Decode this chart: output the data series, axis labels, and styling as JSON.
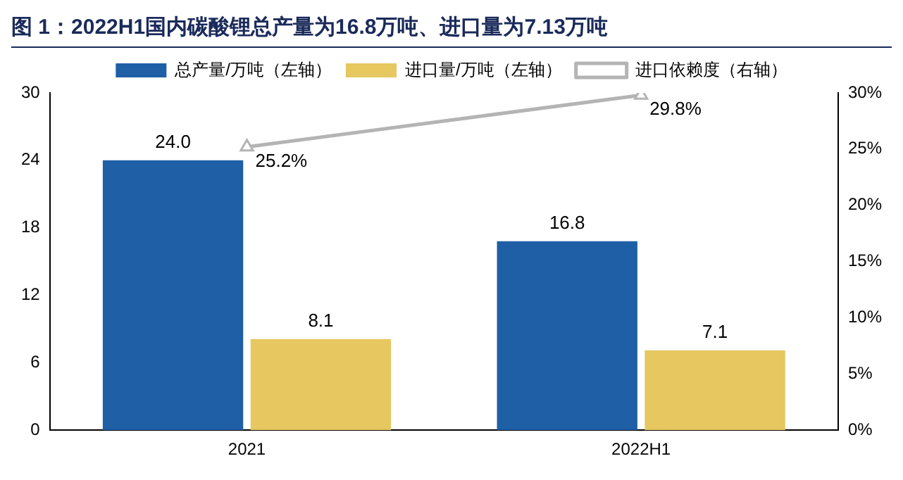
{
  "chart_data": {
    "type": "bar",
    "title": "图 1：2022H1国内碳酸锂总产量为16.8万吨、进口量为7.13万吨",
    "categories": [
      "2021",
      "2022H1"
    ],
    "series": [
      {
        "name": "总产量/万吨（左轴）",
        "color": "#1f5fa6",
        "values": [
          24.0,
          16.8
        ],
        "value_labels": [
          "24.0",
          "16.8"
        ]
      },
      {
        "name": "进口量/万吨（左轴）",
        "color": "#e6c760",
        "values": [
          8.1,
          7.1
        ],
        "value_labels": [
          "8.1",
          "7.1"
        ]
      },
      {
        "name": "进口依赖度（右轴）",
        "type": "line",
        "axis": "y2",
        "color": "#b4b4b4",
        "marker": "triangle",
        "values": [
          25.2,
          29.8
        ],
        "value_labels": [
          "25.2%",
          "29.8%"
        ]
      }
    ],
    "ylim": [
      0,
      30
    ],
    "yticks": [
      0,
      6,
      12,
      18,
      24,
      30
    ],
    "y2lim": [
      0,
      30
    ],
    "y2ticks": [
      {
        "value": 0,
        "label": "0%"
      },
      {
        "value": 5,
        "label": "5%"
      },
      {
        "value": 10,
        "label": "10%"
      },
      {
        "value": 15,
        "label": "15%"
      },
      {
        "value": 20,
        "label": "20%"
      },
      {
        "value": 25,
        "label": "25%"
      },
      {
        "value": 30,
        "label": "30%"
      }
    ],
    "grid": false,
    "legend": "top"
  }
}
